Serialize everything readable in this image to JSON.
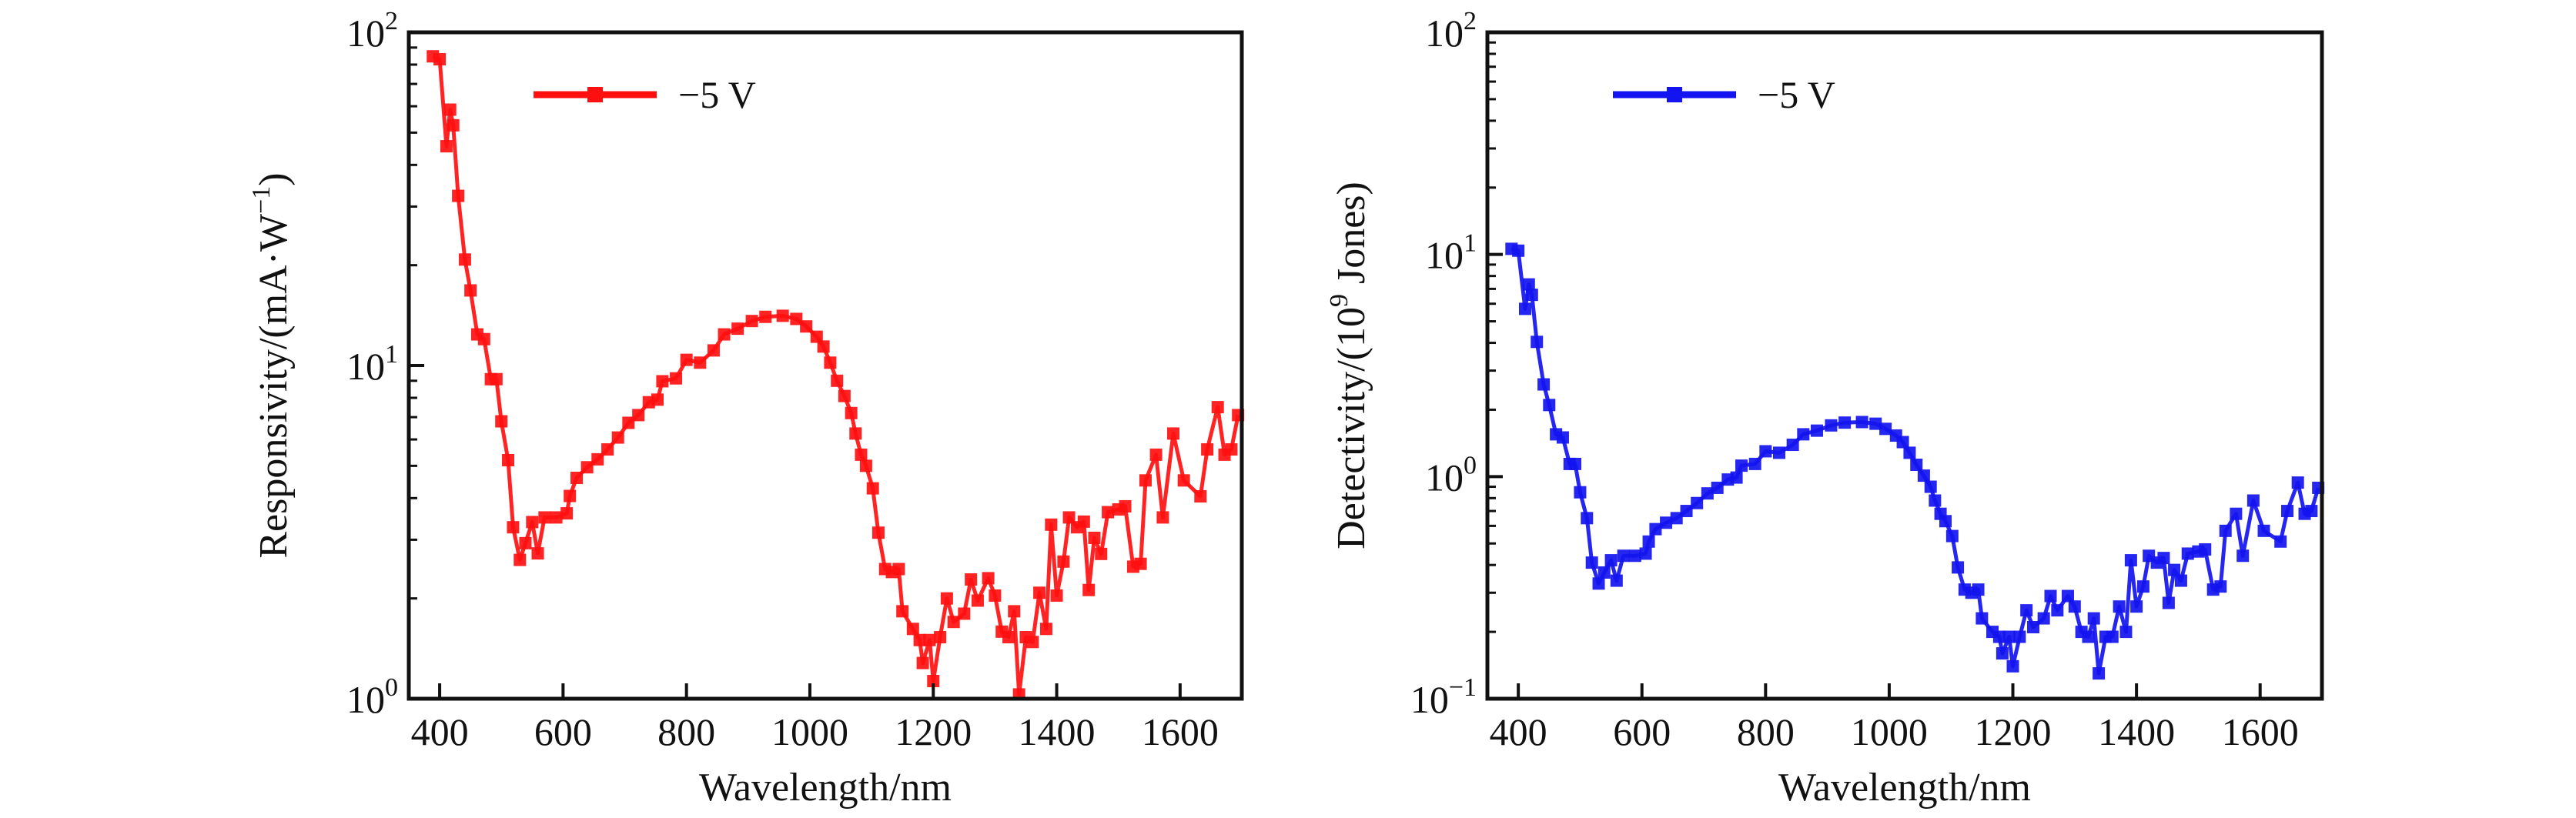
{
  "chart_data": [
    {
      "type": "line",
      "xlabel": "Wavelength/nm",
      "ylabel": {
        "main": "Responsivity/(mA·W",
        "sup": "−1",
        "tail": ")"
      },
      "xlim": [
        350,
        1700
      ],
      "ylim": [
        1,
        100
      ],
      "yscale": "log",
      "xticks": [
        "400",
        "600",
        "800",
        "1000",
        "1200",
        "1400",
        "1600"
      ],
      "yticks": [
        {
          "base": "10",
          "exp": "0",
          "value": 1
        },
        {
          "base": "10",
          "exp": "1",
          "value": 10
        },
        {
          "base": "10",
          "exp": "2",
          "value": 100
        }
      ],
      "legend_position": "top-left",
      "grid": false,
      "series": [
        {
          "name": "−5 V",
          "color": "#ff1010",
          "marker": "square",
          "x": [
            389,
            400,
            411,
            417,
            422,
            430,
            441,
            450,
            461,
            472,
            483,
            492,
            500,
            511,
            519,
            530,
            539,
            550,
            559,
            570,
            589,
            606,
            611,
            622,
            639,
            656,
            672,
            689,
            706,
            722,
            739,
            753,
            761,
            783,
            800,
            822,
            844,
            861,
            883,
            906,
            928,
            956,
            978,
            994,
            1011,
            1022,
            1033,
            1044,
            1056,
            1067,
            1074,
            1083,
            1091,
            1102,
            1111,
            1122,
            1133,
            1144,
            1150,
            1167,
            1178,
            1183,
            1194,
            1200,
            1211,
            1222,
            1233,
            1250,
            1261,
            1272,
            1289,
            1300,
            1311,
            1322,
            1331,
            1339,
            1350,
            1361,
            1372,
            1383,
            1391,
            1400,
            1411,
            1420,
            1433,
            1444,
            1452,
            1461,
            1472,
            1483,
            1500,
            1511,
            1524,
            1536,
            1544,
            1561,
            1572,
            1589,
            1606,
            1633,
            1644,
            1661,
            1672,
            1683,
            1694
          ],
          "y": [
            84.7,
            83,
            45.5,
            58.6,
            52.6,
            32.3,
            20.8,
            16.8,
            12.4,
            12,
            9.1,
            9.1,
            6.8,
            5.2,
            3.27,
            2.61,
            2.93,
            3.39,
            2.73,
            3.5,
            3.5,
            3.6,
            4.06,
            4.6,
            4.95,
            5.23,
            5.6,
            6.08,
            6.73,
            7.1,
            7.76,
            7.9,
            8.97,
            9.15,
            10.4,
            10.2,
            11.1,
            12.4,
            12.9,
            13.6,
            14,
            14.1,
            13.8,
            13.1,
            12.2,
            11.4,
            10.2,
            9,
            8.1,
            7.2,
            6.25,
            5.4,
            5,
            4.28,
            3.15,
            2.45,
            2.4,
            2.45,
            1.83,
            1.62,
            1.5,
            1.28,
            1.5,
            1.13,
            1.53,
            2,
            1.7,
            1.8,
            2.28,
            1.97,
            2.3,
            2.04,
            1.59,
            1.53,
            1.83,
            1.03,
            1.53,
            1.48,
            2.08,
            1.62,
            3.33,
            2.04,
            2.58,
            3.5,
            3.27,
            3.4,
            2.12,
            3.04,
            2.72,
            3.63,
            3.7,
            3.78,
            2.49,
            2.54,
            4.52,
            5.4,
            3.5,
            6.25,
            4.52,
            4.05,
            5.6,
            7.5,
            5.4,
            5.6,
            7.1
          ]
        }
      ]
    },
    {
      "type": "line",
      "xlabel": "Wavelength/nm",
      "ylabel": {
        "main": "Detectivity/(10",
        "sup": "9",
        "tail": " Jones)"
      },
      "xlim": [
        350,
        1700
      ],
      "ylim": [
        0.1,
        100
      ],
      "yscale": "log",
      "xticks": [
        "400",
        "600",
        "800",
        "1000",
        "1200",
        "1400",
        "1600"
      ],
      "yticks": [
        {
          "base": "10",
          "exp": "−1",
          "value": 0.1
        },
        {
          "base": "10",
          "exp": "0",
          "value": 1
        },
        {
          "base": "10",
          "exp": "1",
          "value": 10
        },
        {
          "base": "10",
          "exp": "2",
          "value": 100
        }
      ],
      "legend_position": "top-left",
      "grid": false,
      "series": [
        {
          "name": "−5 V",
          "color": "#1414f0",
          "marker": "square",
          "x": [
            389,
            400,
            411,
            417,
            422,
            430,
            441,
            450,
            461,
            472,
            483,
            492,
            500,
            511,
            519,
            530,
            539,
            550,
            559,
            570,
            589,
            606,
            611,
            622,
            639,
            656,
            672,
            689,
            706,
            722,
            739,
            753,
            761,
            783,
            800,
            822,
            844,
            861,
            883,
            906,
            928,
            956,
            978,
            994,
            1011,
            1022,
            1033,
            1044,
            1056,
            1067,
            1074,
            1083,
            1091,
            1102,
            1111,
            1122,
            1133,
            1144,
            1150,
            1167,
            1178,
            1183,
            1194,
            1200,
            1211,
            1222,
            1233,
            1250,
            1261,
            1272,
            1289,
            1300,
            1311,
            1322,
            1331,
            1339,
            1350,
            1361,
            1372,
            1383,
            1391,
            1400,
            1411,
            1420,
            1433,
            1444,
            1452,
            1461,
            1472,
            1483,
            1500,
            1511,
            1524,
            1536,
            1544,
            1561,
            1572,
            1589,
            1606,
            1633,
            1644,
            1661,
            1672,
            1683,
            1694
          ],
          "y": [
            10.6,
            10.4,
            5.69,
            7.33,
            6.58,
            4.04,
            2.6,
            2.1,
            1.55,
            1.5,
            1.14,
            1.14,
            0.85,
            0.65,
            0.41,
            0.33,
            0.37,
            0.42,
            0.34,
            0.44,
            0.44,
            0.45,
            0.51,
            0.58,
            0.62,
            0.65,
            0.7,
            0.76,
            0.84,
            0.89,
            0.97,
            0.99,
            1.12,
            1.14,
            1.3,
            1.28,
            1.39,
            1.55,
            1.61,
            1.7,
            1.75,
            1.76,
            1.73,
            1.64,
            1.53,
            1.43,
            1.28,
            1.13,
            1.01,
            0.9,
            0.78,
            0.68,
            0.63,
            0.54,
            0.39,
            0.31,
            0.3,
            0.31,
            0.23,
            0.2,
            0.19,
            0.16,
            0.19,
            0.14,
            0.19,
            0.25,
            0.21,
            0.23,
            0.29,
            0.25,
            0.29,
            0.26,
            0.2,
            0.19,
            0.23,
            0.13,
            0.19,
            0.19,
            0.26,
            0.2,
            0.42,
            0.26,
            0.32,
            0.44,
            0.41,
            0.43,
            0.27,
            0.38,
            0.34,
            0.45,
            0.46,
            0.47,
            0.31,
            0.32,
            0.57,
            0.68,
            0.44,
            0.78,
            0.57,
            0.51,
            0.7,
            0.94,
            0.68,
            0.7,
            0.89
          ]
        }
      ]
    }
  ]
}
